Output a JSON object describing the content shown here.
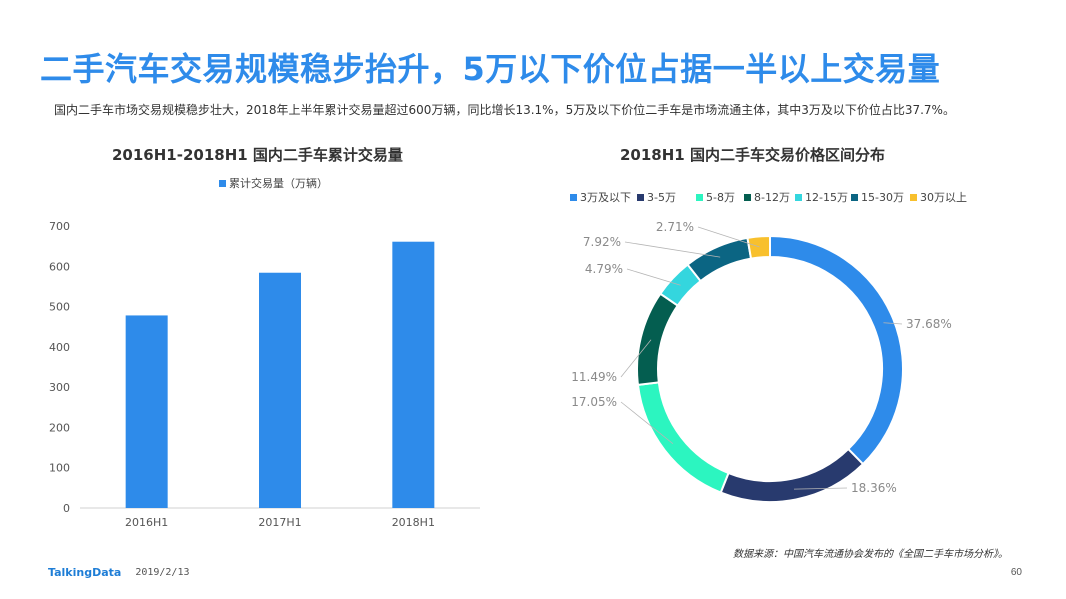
{
  "header": {
    "title": "二手汽车交易规模稳步抬升，5万以下价位占据一半以上交易量",
    "subtitle": "国内二手车市场交易规模稳步壮大，2018年上半年累计交易量超过600万辆，同比增长13.1%，5万及以下价位二手车是市场流通主体，其中3万及以下价位占比37.7%。"
  },
  "footer": {
    "source": "数据来源：中国汽车流通协会发布的《全国二手车市场分析》。",
    "brand": "TalkingData",
    "date": "2019/2/13",
    "page": "60"
  },
  "chart_data": [
    {
      "type": "bar",
      "title": "2016H1-2018H1  国内二手车累计交易量",
      "categories": [
        "2016H1",
        "2017H1",
        "2018H1"
      ],
      "series": [
        {
          "name": "累计交易量（万辆）",
          "values": [
            478,
            584,
            661
          ]
        }
      ],
      "ylim": [
        0,
        700
      ],
      "yticks": [
        0,
        100,
        200,
        300,
        400,
        500,
        600,
        700
      ],
      "grid": false,
      "legend": "top-center",
      "color": "#2E8BEA"
    },
    {
      "type": "pie",
      "donut": true,
      "title": "2018H1  国内二手车交易价格区间分布",
      "legend": "top",
      "slices": [
        {
          "label": "3万及以下",
          "value": 37.68,
          "text": "37.68%",
          "color": "#2E8BEA"
        },
        {
          "label": "3-5万",
          "value": 18.36,
          "text": "18.36%",
          "color": "#283A6E"
        },
        {
          "label": "5-8万",
          "value": 17.05,
          "text": "17.05%",
          "color": "#2CF5C0"
        },
        {
          "label": "8-12万",
          "value": 11.49,
          "text": "11.49%",
          "color": "#045E50"
        },
        {
          "label": "12-15万",
          "value": 4.79,
          "text": "4.79%",
          "color": "#34D6DE"
        },
        {
          "label": "15-30万",
          "value": 7.92,
          "text": "7.92%",
          "color": "#0B6583"
        },
        {
          "label": "30万以上",
          "value": 2.71,
          "text": "2.71%",
          "color": "#F8C02D"
        }
      ]
    }
  ]
}
